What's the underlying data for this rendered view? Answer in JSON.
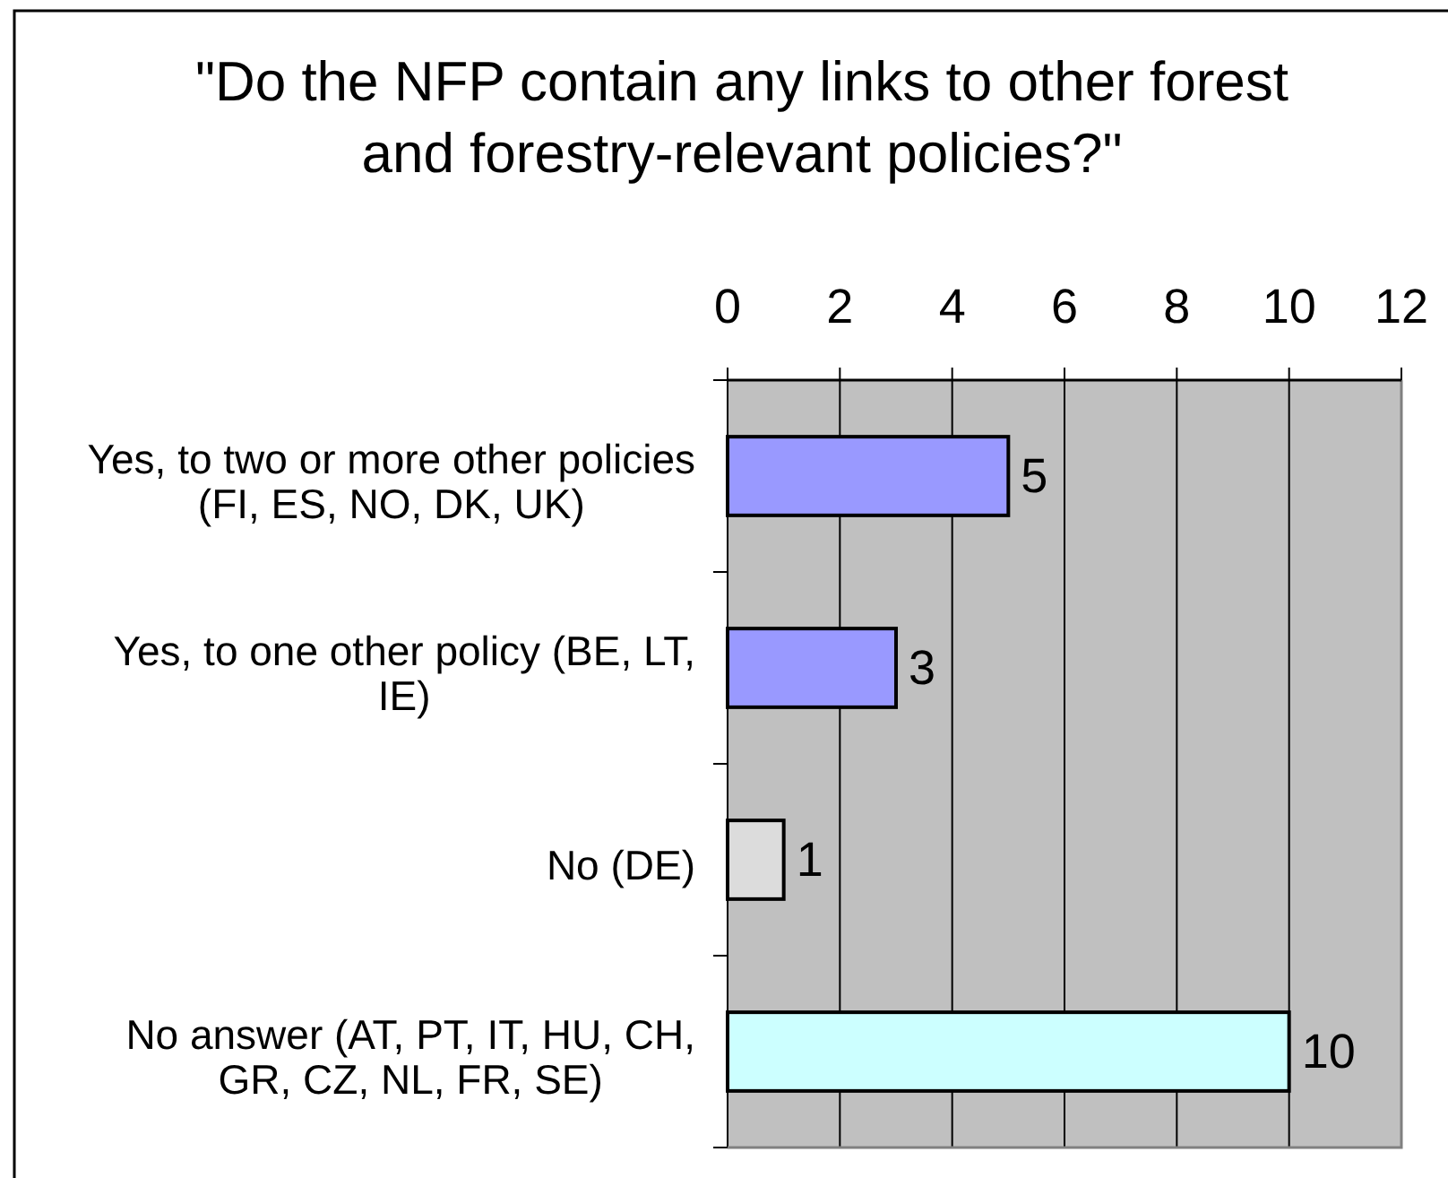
{
  "chart_data": {
    "type": "bar",
    "orientation": "horizontal",
    "title": "\"Do the NFP contain any links to other forest and forestry-relevant policies?\"",
    "categories": [
      "Yes, to two or more other policies (FI, ES, NO, DK, UK)",
      "Yes, to one other policy (BE, LT, IE)",
      "No (DE)",
      "No answer (AT, PT, IT, HU, CH, GR, CZ, NL, FR, SE)"
    ],
    "values": [
      5,
      3,
      1,
      10
    ],
    "colors": [
      "#9999ff",
      "#9999ff",
      "#dcdcdc",
      "#ccffff"
    ],
    "xlim": [
      0,
      12
    ],
    "xticks": [
      0,
      2,
      4,
      6,
      8,
      10,
      12
    ],
    "grid": "x",
    "data_labels": true
  }
}
